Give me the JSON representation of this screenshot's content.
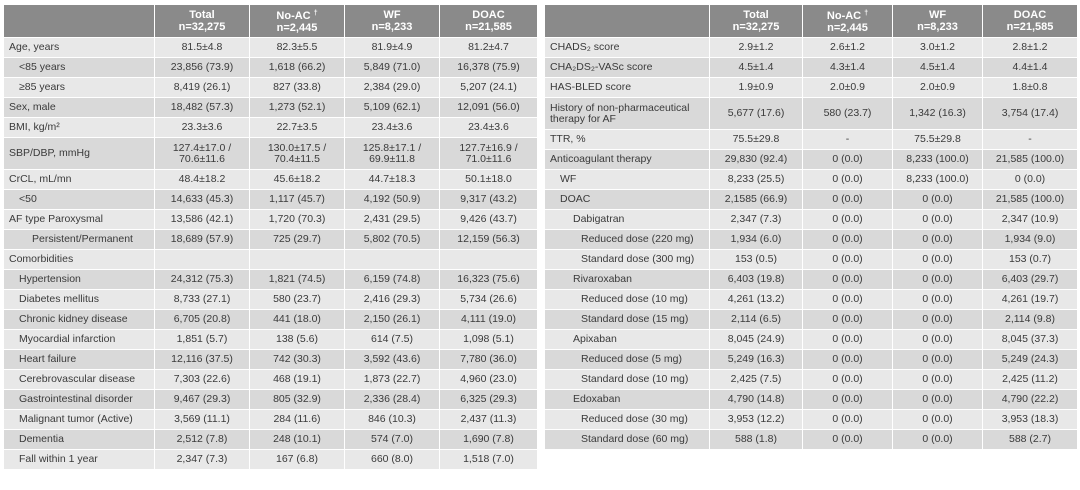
{
  "corner_note": "",
  "headers": {
    "total": {
      "title": "Total",
      "n": "n=32,275"
    },
    "noac": {
      "title": "No-AC",
      "mark": "†",
      "n": "n=2,445"
    },
    "wf": {
      "title": "WF",
      "n": "n=8,233"
    },
    "doac": {
      "title": "DOAC",
      "n": "n=21,585"
    }
  },
  "left_rows": [
    {
      "label": "Age, years",
      "indent": 0,
      "alt": false,
      "total": "81.5±4.8",
      "noac": "82.3±5.5",
      "wf": "81.9±4.9",
      "doac": "81.2±4.7"
    },
    {
      "label": "<85 years",
      "indent": 1,
      "alt": true,
      "total": "23,856 (73.9)",
      "noac": "1,618 (66.2)",
      "wf": "5,849 (71.0)",
      "doac": "16,378 (75.9)"
    },
    {
      "label": "≥85 years",
      "indent": 1,
      "alt": false,
      "total": "8,419 (26.1)",
      "noac": "827 (33.8)",
      "wf": "2,384 (29.0)",
      "doac": "5,207 (24.1)"
    },
    {
      "label": "Sex, male",
      "indent": 0,
      "alt": true,
      "total": "18,482 (57.3)",
      "noac": "1,273 (52.1)",
      "wf": "5,109 (62.1)",
      "doac": "12,091 (56.0)"
    },
    {
      "label": "BMI, kg/m²",
      "indent": 0,
      "alt": false,
      "total": "23.3±3.6",
      "noac": "22.7±3.5",
      "wf": "23.4±3.6",
      "doac": "23.4±3.6"
    },
    {
      "label": "SBP/DBP, mmHg",
      "indent": 0,
      "alt": true,
      "tall": true,
      "total": "127.4±17.0 / 70.6±11.6",
      "noac": "130.0±17.5 / 70.4±11.5",
      "wf": "125.8±17.1 / 69.9±11.8",
      "doac": "127.7±16.9 / 71.0±11.6"
    },
    {
      "label": "CrCL, mL/mn",
      "indent": 0,
      "alt": false,
      "total": "48.4±18.2",
      "noac": "45.6±18.2",
      "wf": "44.7±18.3",
      "doac": "50.1±18.0"
    },
    {
      "label": "<50",
      "indent": 1,
      "alt": true,
      "total": "14,633 (45.3)",
      "noac": "1,117 (45.7)",
      "wf": "4,192 (50.9)",
      "doac": "9,317 (43.2)"
    },
    {
      "label": "AF type  Paroxysmal",
      "indent": 0,
      "alt": false,
      "total": "13,586 (42.1)",
      "noac": "1,720 (70.3)",
      "wf": "2,431 (29.5)",
      "doac": "9,426 (43.7)"
    },
    {
      "label": "Persistent/Permanent",
      "indent": 2,
      "alt": true,
      "total": "18,689 (57.9)",
      "noac": "725 (29.7)",
      "wf": "5,802 (70.5)",
      "doac": "12,159 (56.3)"
    },
    {
      "label": "Comorbidities",
      "indent": 0,
      "alt": false,
      "total": "",
      "noac": "",
      "wf": "",
      "doac": ""
    },
    {
      "label": "Hypertension",
      "indent": 1,
      "alt": true,
      "total": "24,312 (75.3)",
      "noac": "1,821 (74.5)",
      "wf": "6,159 (74.8)",
      "doac": "16,323 (75.6)"
    },
    {
      "label": "Diabetes mellitus",
      "indent": 1,
      "alt": false,
      "total": "8,733 (27.1)",
      "noac": "580 (23.7)",
      "wf": "2,416 (29.3)",
      "doac": "5,734 (26.6)"
    },
    {
      "label": "Chronic kidney disease",
      "indent": 1,
      "alt": true,
      "total": "6,705 (20.8)",
      "noac": "441 (18.0)",
      "wf": "2,150 (26.1)",
      "doac": "4,111 (19.0)"
    },
    {
      "label": "Myocardial infarction",
      "indent": 1,
      "alt": false,
      "total": "1,851 (5.7)",
      "noac": "138 (5.6)",
      "wf": "614 (7.5)",
      "doac": "1,098 (5.1)"
    },
    {
      "label": "Heart failure",
      "indent": 1,
      "alt": true,
      "total": "12,116 (37.5)",
      "noac": "742 (30.3)",
      "wf": "3,592 (43.6)",
      "doac": "7,780 (36.0)"
    },
    {
      "label": "Cerebrovascular disease",
      "indent": 1,
      "alt": false,
      "total": "7,303 (22.6)",
      "noac": "468 (19.1)",
      "wf": "1,873 (22.7)",
      "doac": "4,960 (23.0)"
    },
    {
      "label": "Gastrointestinal disorder",
      "indent": 1,
      "alt": true,
      "total": "9,467 (29.3)",
      "noac": "805 (32.9)",
      "wf": "2,336 (28.4)",
      "doac": "6,325 (29.3)"
    },
    {
      "label": "Malignant tumor (Active)",
      "indent": 1,
      "alt": false,
      "total": "3,569 (11.1)",
      "noac": "284 (11.6)",
      "wf": "846 (10.3)",
      "doac": "2,437 (11.3)"
    },
    {
      "label": "Dementia",
      "indent": 1,
      "alt": true,
      "total": "2,512 (7.8)",
      "noac": "248 (10.1)",
      "wf": "574 (7.0)",
      "doac": "1,690 (7.8)"
    },
    {
      "label": "Fall within 1 year",
      "indent": 1,
      "alt": false,
      "total": "2,347 (7.3)",
      "noac": "167 (6.8)",
      "wf": "660 (8.0)",
      "doac": "1,518 (7.0)"
    }
  ],
  "right_rows": [
    {
      "label": "CHADS₂ score",
      "indent": 0,
      "alt": false,
      "total": "2.9±1.2",
      "noac": "2.6±1.2",
      "wf": "3.0±1.2",
      "doac": "2.8±1.2"
    },
    {
      "label": "CHA₂DS₂-VASc score",
      "indent": 0,
      "alt": true,
      "total": "4.5±1.4",
      "noac": "4.3±1.4",
      "wf": "4.5±1.4",
      "doac": "4.4±1.4"
    },
    {
      "label": "HAS-BLED score",
      "indent": 0,
      "alt": false,
      "total": "1.9±0.9",
      "noac": "2.0±0.9",
      "wf": "2.0±0.9",
      "doac": "1.8±0.8"
    },
    {
      "label": "History of non-pharmaceutical therapy for AF",
      "indent": 0,
      "alt": true,
      "tall": true,
      "total": "5,677 (17.6)",
      "noac": "580 (23.7)",
      "wf": "1,342 (16.3)",
      "doac": "3,754 (17.4)"
    },
    {
      "label": "TTR, %",
      "indent": 0,
      "alt": false,
      "total": "75.5±29.8",
      "noac": "-",
      "wf": "75.5±29.8",
      "doac": "-"
    },
    {
      "label": "Anticoagulant therapy",
      "indent": 0,
      "alt": true,
      "total": "29,830 (92.4)",
      "noac": "0 (0.0)",
      "wf": "8,233 (100.0)",
      "doac": "21,585 (100.0)"
    },
    {
      "label": "WF",
      "indent": 1,
      "alt": false,
      "total": "8,233 (25.5)",
      "noac": "0 (0.0)",
      "wf": "8,233 (100.0)",
      "doac": "0 (0.0)"
    },
    {
      "label": "DOAC",
      "indent": 1,
      "alt": true,
      "total": "2,1585 (66.9)",
      "noac": "0 (0.0)",
      "wf": "0 (0.0)",
      "doac": "21,585 (100.0)"
    },
    {
      "label": "Dabigatran",
      "indent": 2,
      "alt": false,
      "total": "2,347 (7.3)",
      "noac": "0 (0.0)",
      "wf": "0 (0.0)",
      "doac": "2,347 (10.9)"
    },
    {
      "label": "Reduced dose (220 mg)",
      "indent": 3,
      "alt": true,
      "total": "1,934 (6.0)",
      "noac": "0 (0.0)",
      "wf": "0 (0.0)",
      "doac": "1,934 (9.0)"
    },
    {
      "label": "Standard dose (300 mg)",
      "indent": 3,
      "alt": false,
      "total": "153 (0.5)",
      "noac": "0 (0.0)",
      "wf": "0 (0.0)",
      "doac": "153 (0.7)"
    },
    {
      "label": "Rivaroxaban",
      "indent": 2,
      "alt": true,
      "total": "6,403 (19.8)",
      "noac": "0 (0.0)",
      "wf": "0 (0.0)",
      "doac": "6,403 (29.7)"
    },
    {
      "label": "Reduced dose (10 mg)",
      "indent": 3,
      "alt": false,
      "total": "4,261 (13.2)",
      "noac": "0 (0.0)",
      "wf": "0 (0.0)",
      "doac": "4,261 (19.7)"
    },
    {
      "label": "Standard dose (15 mg)",
      "indent": 3,
      "alt": true,
      "total": "2,114 (6.5)",
      "noac": "0 (0.0)",
      "wf": "0 (0.0)",
      "doac": "2,114 (9.8)"
    },
    {
      "label": "Apixaban",
      "indent": 2,
      "alt": false,
      "total": "8,045 (24.9)",
      "noac": "0 (0.0)",
      "wf": "0 (0.0)",
      "doac": "8,045 (37.3)"
    },
    {
      "label": "Reduced dose (5 mg)",
      "indent": 3,
      "alt": true,
      "total": "5,249 (16.3)",
      "noac": "0 (0.0)",
      "wf": "0 (0.0)",
      "doac": "5,249 (24.3)"
    },
    {
      "label": "Standard dose (10 mg)",
      "indent": 3,
      "alt": false,
      "total": "2,425 (7.5)",
      "noac": "0 (0.0)",
      "wf": "0 (0.0)",
      "doac": "2,425 (11.2)"
    },
    {
      "label": "Edoxaban",
      "indent": 2,
      "alt": true,
      "total": "4,790 (14.8)",
      "noac": "0 (0.0)",
      "wf": "0 (0.0)",
      "doac": "4,790 (22.2)"
    },
    {
      "label": "Reduced dose (30 mg)",
      "indent": 3,
      "alt": false,
      "total": "3,953 (12.2)",
      "noac": "0 (0.0)",
      "wf": "0 (0.0)",
      "doac": "3,953 (18.3)"
    },
    {
      "label": "Standard dose (60 mg)",
      "indent": 3,
      "alt": true,
      "total": "588 (1.8)",
      "noac": "0 (0.0)",
      "wf": "0 (0.0)",
      "doac": "588 (2.7)"
    }
  ]
}
